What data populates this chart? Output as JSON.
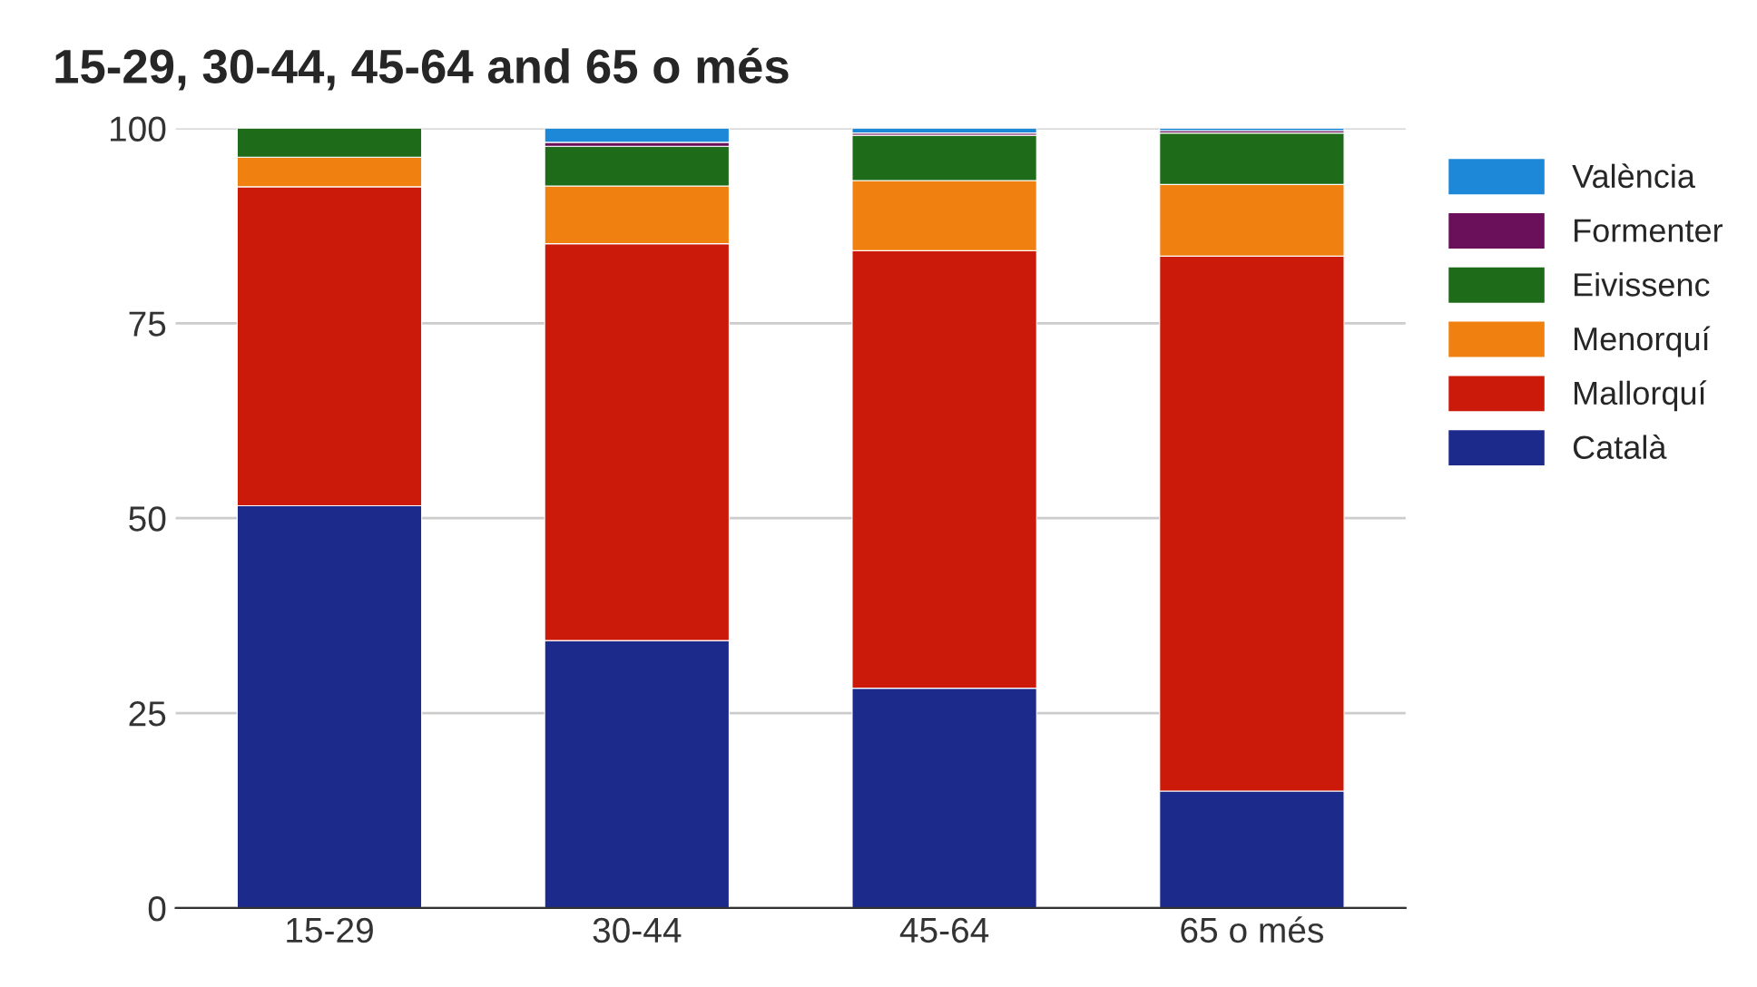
{
  "chart_data": {
    "type": "bar",
    "title": "15-29, 30-44, 45-64 and 65 o més",
    "stacked": true,
    "categories": [
      "15-29",
      "30-44",
      "45-64",
      "65 o més"
    ],
    "series": [
      {
        "name": "Català",
        "color": "#1c2a8c",
        "values": [
          51.6,
          34.3,
          28.2,
          15.0
        ]
      },
      {
        "name": "Mallorquí",
        "color": "#cc1a0a",
        "values": [
          40.9,
          50.9,
          56.1,
          68.6
        ]
      },
      {
        "name": "Menorquí",
        "color": "#f08010",
        "values": [
          3.8,
          7.4,
          9.0,
          9.2
        ]
      },
      {
        "name": "Eivissenc",
        "color": "#1e6b1a",
        "values": [
          3.7,
          5.1,
          5.8,
          6.6
        ]
      },
      {
        "name": "Formenter",
        "color": "#6a0f5a",
        "values": [
          null,
          0.5,
          0.3,
          0.3
        ]
      },
      {
        "name": "València",
        "color": "#1e88d8",
        "values": [
          null,
          1.8,
          0.6,
          0.3
        ]
      }
    ],
    "ylim": [
      0,
      100
    ],
    "yticks": [
      0,
      25,
      50,
      75,
      100
    ],
    "grid": "y",
    "legend": "right"
  }
}
